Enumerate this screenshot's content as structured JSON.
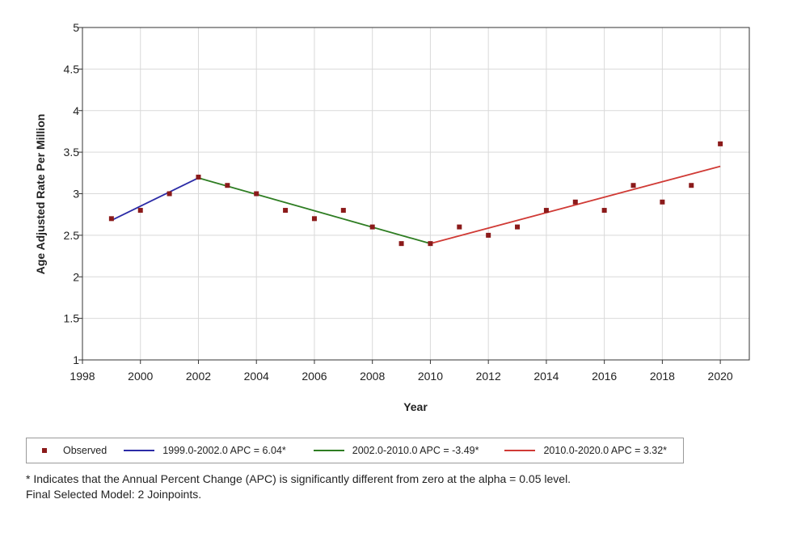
{
  "chart_data": {
    "type": "line",
    "xlabel": "Year",
    "ylabel": "Age Adjusted Rate Per Million",
    "xlim": [
      1998,
      2021
    ],
    "ylim": [
      1,
      5
    ],
    "x_ticks": [
      "1998",
      "2000",
      "2002",
      "2004",
      "2006",
      "2008",
      "2010",
      "2012",
      "2014",
      "2016",
      "2018",
      "2020"
    ],
    "y_ticks": [
      "1",
      "1.5",
      "2",
      "2.5",
      "3",
      "3.5",
      "4",
      "4.5",
      "5"
    ],
    "grid": true,
    "observed": {
      "name": "Observed",
      "color": "#8b1a1a",
      "x": [
        1999,
        2000,
        2001,
        2002,
        2003,
        2004,
        2005,
        2006,
        2007,
        2008,
        2009,
        2010,
        2011,
        2012,
        2013,
        2014,
        2015,
        2016,
        2017,
        2018,
        2019,
        2020
      ],
      "y": [
        2.7,
        2.8,
        3.0,
        3.2,
        3.1,
        3.0,
        2.8,
        2.7,
        2.8,
        2.6,
        2.4,
        2.4,
        2.6,
        2.5,
        2.6,
        2.8,
        2.9,
        2.8,
        3.1,
        2.9,
        3.1,
        3.6
      ]
    },
    "segments": [
      {
        "name": "1999.0-2002.0 APC  =  6.04*",
        "color": "#2b2ba6",
        "start": 1999,
        "end": 2002,
        "y_start": 2.68,
        "y_end": 3.19
      },
      {
        "name": "2002.0-2010.0 APC  = -3.49*",
        "color": "#2e7d22",
        "start": 2002,
        "end": 2010,
        "y_start": 3.19,
        "y_end": 2.4
      },
      {
        "name": "2010.0-2020.0 APC  =  3.32*",
        "color": "#d03a35",
        "start": 2010,
        "end": 2020,
        "y_start": 2.4,
        "y_end": 3.33
      }
    ]
  },
  "footnote": {
    "line1": "* Indicates that the Annual Percent Change (APC) is significantly different from zero at the alpha = 0.05 level.",
    "line2": "Final Selected Model: 2 Joinpoints."
  }
}
